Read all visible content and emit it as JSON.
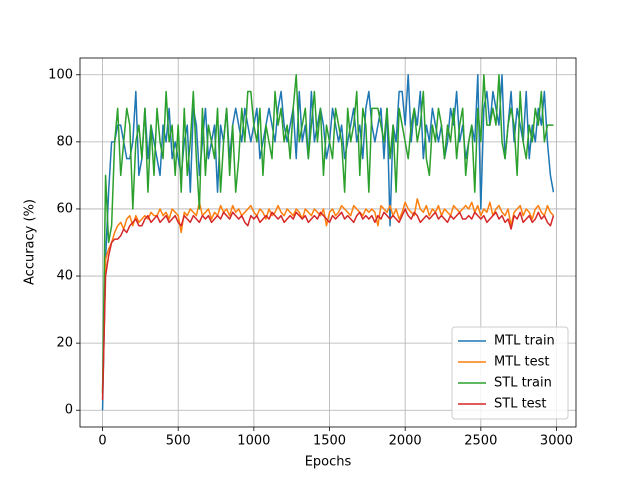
{
  "chart_data": {
    "type": "line",
    "x_label": "Epochs",
    "y_label": "Accuracy (%)",
    "x": [
      0,
      20,
      40,
      60,
      80,
      100,
      120,
      140,
      160,
      180,
      200,
      220,
      240,
      260,
      280,
      300,
      320,
      340,
      360,
      380,
      400,
      420,
      440,
      460,
      480,
      500,
      520,
      540,
      560,
      580,
      600,
      620,
      640,
      660,
      680,
      700,
      720,
      740,
      760,
      780,
      800,
      820,
      840,
      860,
      880,
      900,
      920,
      940,
      960,
      980,
      1000,
      1020,
      1040,
      1060,
      1080,
      1100,
      1120,
      1140,
      1160,
      1180,
      1200,
      1220,
      1240,
      1260,
      1280,
      1300,
      1320,
      1340,
      1360,
      1380,
      1400,
      1420,
      1440,
      1460,
      1480,
      1500,
      1520,
      1540,
      1560,
      1580,
      1600,
      1620,
      1640,
      1660,
      1680,
      1700,
      1720,
      1740,
      1760,
      1780,
      1800,
      1820,
      1840,
      1860,
      1880,
      1900,
      1920,
      1940,
      1960,
      1980,
      2000,
      2020,
      2040,
      2060,
      2080,
      2100,
      2120,
      2140,
      2160,
      2180,
      2200,
      2220,
      2240,
      2260,
      2280,
      2300,
      2320,
      2340,
      2360,
      2380,
      2400,
      2420,
      2440,
      2460,
      2480,
      2500,
      2520,
      2540,
      2560,
      2580,
      2600,
      2620,
      2640,
      2660,
      2680,
      2700,
      2720,
      2740,
      2760,
      2780,
      2800,
      2820,
      2840,
      2860,
      2880,
      2900,
      2920,
      2940,
      2960,
      2980
    ],
    "series": [
      {
        "name": "MTL train",
        "color": "#1f77b4",
        "values": [
          0,
          45,
          65,
          80,
          80,
          85,
          85,
          80,
          75,
          75,
          80,
          95,
          70,
          75,
          90,
          75,
          85,
          80,
          75,
          70,
          85,
          80,
          90,
          75,
          80,
          75,
          70,
          80,
          85,
          65,
          90,
          85,
          70,
          80,
          90,
          75,
          80,
          85,
          65,
          85,
          80,
          90,
          75,
          85,
          90,
          85,
          80,
          90,
          85,
          80,
          85,
          90,
          75,
          80,
          85,
          90,
          85,
          80,
          90,
          95,
          85,
          80,
          85,
          90,
          75,
          95,
          80,
          85,
          75,
          95,
          80,
          85,
          90,
          85,
          75,
          80,
          90,
          85,
          80,
          85,
          75,
          80,
          85,
          90,
          80,
          85,
          75,
          90,
          95,
          85,
          80,
          85,
          90,
          75,
          90,
          55,
          85,
          80,
          95,
          95,
          85,
          100,
          80,
          90,
          85,
          95,
          75,
          85,
          80,
          90,
          85,
          80,
          85,
          75,
          80,
          90,
          85,
          95,
          80,
          85,
          75,
          80,
          85,
          80,
          100,
          60,
          90,
          95,
          85,
          95,
          90,
          85,
          100,
          75,
          85,
          95,
          80,
          90,
          85,
          80,
          95,
          75,
          85,
          80,
          90,
          85,
          95,
          80,
          70,
          65
        ]
      },
      {
        "name": "MTL test",
        "color": "#ff7f0e",
        "values": [
          5,
          45,
          48,
          50,
          53,
          55,
          56,
          54,
          57,
          58,
          55,
          58,
          56,
          57,
          58,
          57,
          59,
          58,
          58,
          60,
          58,
          59,
          57,
          60,
          59,
          58,
          53,
          59,
          58,
          60,
          59,
          58,
          62,
          58,
          59,
          60,
          57,
          59,
          58,
          61,
          59,
          60,
          58,
          61,
          59,
          60,
          58,
          59,
          60,
          61,
          59,
          58,
          60,
          59,
          57,
          60,
          58,
          59,
          61,
          59,
          58,
          60,
          59,
          58,
          60,
          59,
          57,
          60,
          59,
          58,
          60,
          59,
          58,
          60,
          55,
          59,
          60,
          58,
          59,
          61,
          60,
          59,
          58,
          61,
          60,
          59,
          58,
          60,
          59,
          60,
          59,
          55,
          61,
          60,
          59,
          61,
          58,
          60,
          57,
          59,
          62,
          60,
          59,
          58,
          63,
          60,
          59,
          61,
          58,
          60,
          59,
          61,
          58,
          60,
          59,
          58,
          61,
          60,
          59,
          60,
          61,
          60,
          62,
          59,
          61,
          58,
          60,
          59,
          62,
          58,
          60,
          61,
          59,
          58,
          60,
          55,
          59,
          60,
          61,
          58,
          60,
          59,
          57,
          60,
          61,
          59,
          58,
          61,
          59,
          58
        ]
      },
      {
        "name": "STL train",
        "color": "#2ca02c",
        "values": [
          5,
          70,
          50,
          55,
          80,
          90,
          70,
          80,
          90,
          85,
          60,
          80,
          85,
          75,
          90,
          65,
          85,
          70,
          90,
          80,
          75,
          95,
          80,
          85,
          70,
          85,
          65,
          90,
          70,
          80,
          95,
          75,
          60,
          90,
          70,
          85,
          80,
          75,
          90,
          65,
          80,
          90,
          70,
          85,
          65,
          75,
          90,
          80,
          95,
          95,
          85,
          80,
          90,
          70,
          85,
          80,
          75,
          95,
          85,
          90,
          80,
          85,
          75,
          90,
          100,
          80,
          85,
          90,
          75,
          85,
          95,
          80,
          90,
          70,
          85,
          80,
          75,
          90,
          85,
          80,
          65,
          90,
          80,
          85,
          95,
          70,
          90,
          85,
          65,
          90,
          90,
          90,
          85,
          80,
          90,
          75,
          85,
          65,
          90,
          85,
          80,
          75,
          85,
          90,
          80,
          85,
          95,
          75,
          70,
          85,
          80,
          90,
          85,
          75,
          85,
          80,
          90,
          75,
          85,
          90,
          70,
          80,
          85,
          65,
          90,
          80,
          100,
          85,
          85,
          90,
          85,
          100,
          80,
          75,
          85,
          90,
          85,
          70,
          95,
          80,
          75,
          85,
          80,
          90,
          85,
          95,
          80,
          85,
          85,
          85
        ]
      },
      {
        "name": "STL test",
        "color": "#d62728",
        "values": [
          3,
          40,
          46,
          50,
          51,
          51,
          52,
          54,
          53,
          55,
          56,
          57,
          55,
          55,
          57,
          58,
          56,
          57,
          58,
          56,
          57,
          58,
          56,
          57,
          58,
          56,
          55,
          58,
          57,
          56,
          58,
          57,
          56,
          58,
          57,
          58,
          56,
          57,
          58,
          57,
          59,
          58,
          57,
          59,
          58,
          57,
          58,
          56,
          55,
          58,
          57,
          58,
          56,
          57,
          58,
          57,
          59,
          58,
          57,
          58,
          56,
          57,
          58,
          57,
          59,
          58,
          57,
          58,
          56,
          57,
          58,
          57,
          59,
          58,
          57,
          56,
          58,
          57,
          58,
          59,
          57,
          58,
          57,
          56,
          58,
          59,
          57,
          58,
          57,
          58,
          56,
          58,
          57,
          59,
          58,
          57,
          58,
          57,
          56,
          58,
          60,
          58,
          57,
          59,
          58,
          56,
          57,
          58,
          57,
          58,
          59,
          57,
          58,
          57,
          56,
          58,
          57,
          58,
          59,
          57,
          57,
          58,
          57,
          59,
          58,
          57,
          58,
          56,
          57,
          58,
          59,
          57,
          58,
          56,
          57,
          54,
          58,
          57,
          59,
          56,
          57,
          58,
          56,
          57,
          59,
          57,
          58,
          56,
          55,
          58
        ]
      }
    ],
    "xlim": [
      -149,
      3129
    ],
    "ylim": [
      -5,
      105
    ],
    "xticks": [
      0,
      500,
      1000,
      1500,
      2000,
      2500,
      3000
    ],
    "yticks": [
      0,
      20,
      40,
      60,
      80,
      100
    ],
    "grid": true,
    "legend": "lower right"
  }
}
